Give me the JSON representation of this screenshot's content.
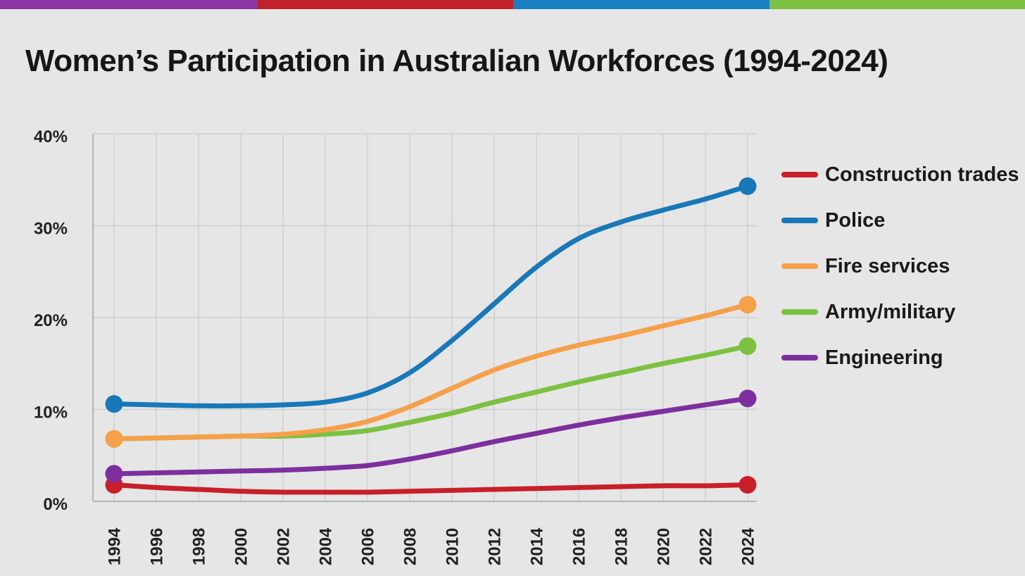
{
  "accent_bar": [
    "#8a35a3",
    "#c0232b",
    "#1a7ec2",
    "#7cc142"
  ],
  "chart_data": {
    "type": "line",
    "title": "Women’s Participation in Australian Workforces (1994-2024)",
    "xlabel": "",
    "ylabel": "",
    "ylim": [
      0,
      40
    ],
    "yticks": [
      "0%",
      "10%",
      "20%",
      "30%",
      "40%"
    ],
    "ytick_values": [
      0,
      10,
      20,
      30,
      40
    ],
    "x": [
      1994,
      1996,
      1998,
      2000,
      2002,
      2004,
      2006,
      2008,
      2010,
      2012,
      2014,
      2016,
      2018,
      2020,
      2022,
      2024
    ],
    "grid": true,
    "legend_position": "right",
    "series": [
      {
        "name": "Construction trades",
        "color": "#c8202b",
        "values": [
          1.8,
          1.5,
          1.3,
          1.1,
          1.0,
          1.0,
          1.0,
          1.1,
          1.2,
          1.3,
          1.4,
          1.5,
          1.6,
          1.7,
          1.7,
          1.8
        ]
      },
      {
        "name": "Police",
        "color": "#1878b8",
        "values": [
          10.6,
          10.5,
          10.4,
          10.4,
          10.5,
          10.8,
          11.8,
          14.0,
          17.5,
          21.5,
          25.5,
          28.6,
          30.4,
          31.7,
          32.9,
          34.3
        ]
      },
      {
        "name": "Fire services",
        "color": "#f7a04a",
        "values": [
          6.8,
          6.9,
          7.0,
          7.1,
          7.3,
          7.8,
          8.7,
          10.3,
          12.3,
          14.3,
          15.8,
          17.0,
          18.0,
          19.1,
          20.2,
          21.4
        ]
      },
      {
        "name": "Army/military",
        "color": "#7cc142",
        "values": [
          6.8,
          6.9,
          7.0,
          7.1,
          7.1,
          7.3,
          7.7,
          8.6,
          9.6,
          10.8,
          11.9,
          13.0,
          14.0,
          15.0,
          15.9,
          16.9
        ]
      },
      {
        "name": "Engineering",
        "color": "#7d2f9e",
        "values": [
          3.0,
          3.1,
          3.2,
          3.3,
          3.4,
          3.6,
          3.9,
          4.6,
          5.5,
          6.5,
          7.4,
          8.3,
          9.1,
          9.8,
          10.5,
          11.2
        ]
      }
    ]
  }
}
